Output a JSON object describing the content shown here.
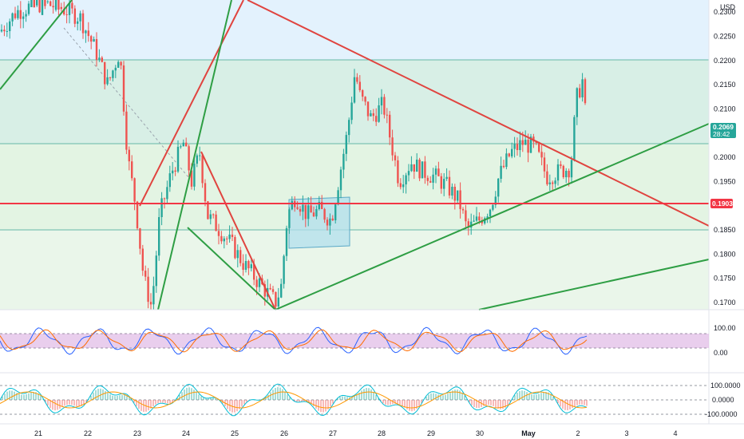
{
  "currency": "USD",
  "price_axis": {
    "labels": [
      "0.2300",
      "0.2250",
      "0.2200",
      "0.2150",
      "0.2100",
      "0.2000",
      "0.1950",
      "0.1850",
      "0.1800",
      "0.1750",
      "0.1700"
    ],
    "values": [
      0.23,
      0.225,
      0.22,
      0.215,
      0.21,
      0.2,
      0.195,
      0.185,
      0.18,
      0.175,
      0.17
    ],
    "ylim": [
      0.1685,
      0.2325
    ]
  },
  "current_price": {
    "value": "0.2069",
    "countdown": "28:42",
    "color": "#26a69a"
  },
  "horizontal_line": {
    "value": "0.1903",
    "price": 0.1903,
    "color": "#f23645"
  },
  "rsi_panel": {
    "labels": [
      "100.00",
      "0.00"
    ],
    "band_color": "#e1bee7"
  },
  "cci_panel": {
    "labels": [
      "100.0000",
      "0.0000",
      "-100.0000"
    ]
  },
  "time_axis": {
    "labels": [
      "21",
      "22",
      "23",
      "24",
      "25",
      "26",
      "27",
      "28",
      "29",
      "30",
      "May",
      "2",
      "3",
      "4"
    ]
  },
  "colors": {
    "up": "#26a69a",
    "down": "#ef5350",
    "trend_red": "#e0443f",
    "trend_green": "#2e9e44",
    "blue_zone": "#e3f2fd",
    "green_zone": "#e8f5e9",
    "rect_fill": "#b2dfec"
  }
}
